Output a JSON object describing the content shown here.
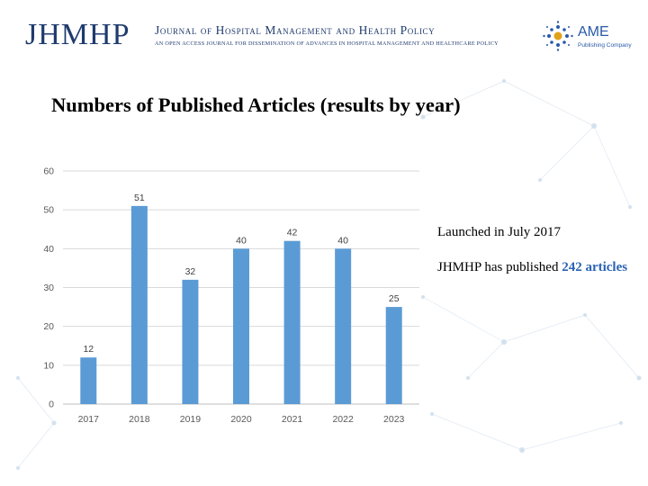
{
  "header": {
    "logo_text": "JHMHP",
    "journal_name": "Journal of Hospital Management and Health Policy",
    "journal_tagline": "an open access journal for dissemination of advances in hospital management and healthcare policy",
    "publisher_name": "AME",
    "publisher_sub": "Publishing Company"
  },
  "slide": {
    "title": "Numbers of Published Articles (results by year)",
    "launch_text": "Launched in July 2017",
    "published_prefix": "JHMHP has published ",
    "published_highlight": "242 articles"
  },
  "colors": {
    "bar": "#5b9bd5",
    "header_text": "#1f3b6e",
    "highlight": "#2b63b4"
  },
  "chart_data": {
    "type": "bar",
    "title": "",
    "xlabel": "",
    "ylabel": "",
    "categories": [
      "2017",
      "2018",
      "2019",
      "2020",
      "2021",
      "2022",
      "2023"
    ],
    "values": [
      12,
      51,
      32,
      40,
      42,
      40,
      25
    ],
    "ylim": [
      0,
      60
    ],
    "yticks": [
      0,
      10,
      20,
      30,
      40,
      50,
      60
    ],
    "grid": true,
    "data_labels": true,
    "legend": "none"
  }
}
